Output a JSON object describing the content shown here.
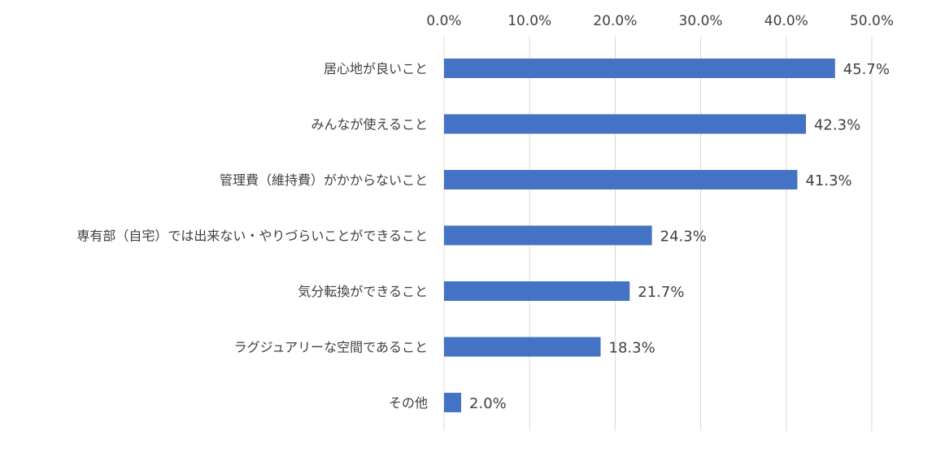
{
  "chart_data": {
    "type": "bar",
    "orientation": "horizontal",
    "categories": [
      "居心地が良いこと",
      "みんなが使えること",
      "管理費（維持費）がかからないこと",
      "専有部（自宅）では出来ない・やりづらいことができること",
      "気分転換ができること",
      "ラグジュアリーな空間であること",
      "その他"
    ],
    "values": [
      45.7,
      42.3,
      41.3,
      24.3,
      21.7,
      18.3,
      2.0
    ],
    "data_labels": [
      "45.7%",
      "42.3%",
      "41.3%",
      "24.3%",
      "21.7%",
      "18.3%",
      "2.0%"
    ],
    "xlim": [
      0,
      50
    ],
    "x_ticks": [
      0,
      10,
      20,
      30,
      40,
      50
    ],
    "x_tick_labels": [
      "0.0%",
      "10.0%",
      "20.0%",
      "30.0%",
      "40.0%",
      "50.0%"
    ],
    "x_axis_position": "top",
    "grid": true,
    "legend": "none",
    "title": "",
    "xlabel": "",
    "ylabel": "",
    "colors": {
      "bar": "#4472C4",
      "grid": "#D9D9D9",
      "text": "#404040"
    }
  }
}
